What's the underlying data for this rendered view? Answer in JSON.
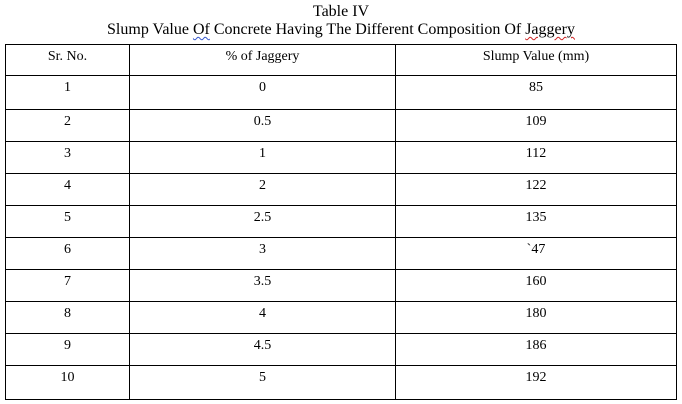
{
  "caption": {
    "line1": "Table IV",
    "line2_before": "Slump Value ",
    "line2_of": "Of",
    "line2_middle": " Concrete Having The Different Composition Of ",
    "line2_jaggery": "Jaggery"
  },
  "table": {
    "headers": [
      "Sr. No.",
      "% of Jaggery",
      "Slump Value (mm)"
    ],
    "rows": [
      [
        "1",
        "0",
        "85"
      ],
      [
        "2",
        "0.5",
        "109"
      ],
      [
        "3",
        "1",
        "112"
      ],
      [
        "4",
        "2",
        "122"
      ],
      [
        "5",
        "2.5",
        "135"
      ],
      [
        "6",
        "3",
        "`47"
      ],
      [
        "7",
        "3.5",
        "160"
      ],
      [
        "8",
        "4",
        "180"
      ],
      [
        "9",
        "4.5",
        "186"
      ],
      [
        "10",
        "5",
        "192"
      ]
    ]
  }
}
